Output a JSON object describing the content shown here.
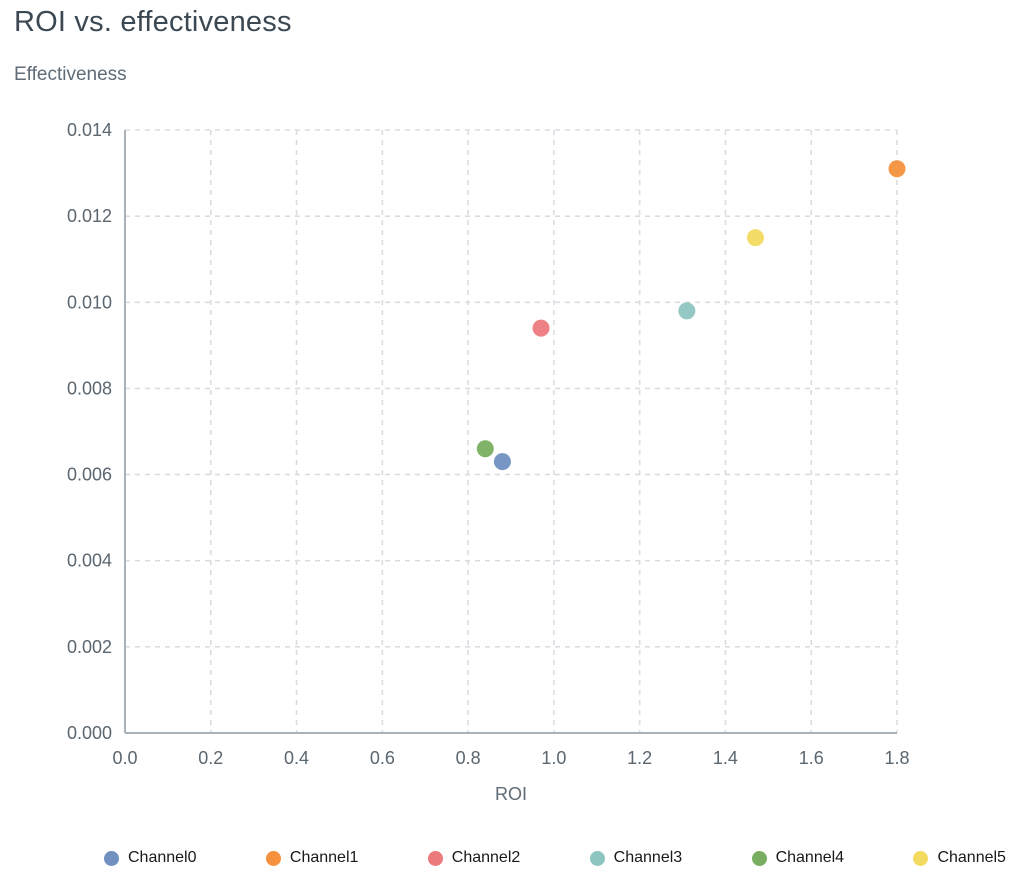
{
  "chart_data": {
    "type": "scatter",
    "title": "ROI vs. effectiveness",
    "xlabel": "ROI",
    "ylabel": "Effectiveness",
    "xlim": [
      0.0,
      1.8
    ],
    "ylim": [
      0.0,
      0.014
    ],
    "grid": true,
    "legend_position": "bottom",
    "x_ticks": [
      0.0,
      0.2,
      0.4,
      0.6,
      0.8,
      1.0,
      1.2,
      1.4,
      1.6,
      1.8
    ],
    "x_tick_labels": [
      "0.0",
      "0.2",
      "0.4",
      "0.6",
      "0.8",
      "1.0",
      "1.2",
      "1.4",
      "1.6",
      "1.8"
    ],
    "y_ticks": [
      0.0,
      0.002,
      0.004,
      0.006,
      0.008,
      0.01,
      0.012,
      0.014
    ],
    "y_tick_labels": [
      "0.000",
      "0.002",
      "0.004",
      "0.006",
      "0.008",
      "0.010",
      "0.012",
      "0.014"
    ],
    "series": [
      {
        "name": "Channel0",
        "color": "#7090c0",
        "points": [
          {
            "x": 0.88,
            "y": 0.0063
          }
        ]
      },
      {
        "name": "Channel1",
        "color": "#f6913e",
        "points": [
          {
            "x": 1.8,
            "y": 0.0131
          }
        ]
      },
      {
        "name": "Channel2",
        "color": "#ec7a7d",
        "points": [
          {
            "x": 0.97,
            "y": 0.0094
          }
        ]
      },
      {
        "name": "Channel3",
        "color": "#8fc5c1",
        "points": [
          {
            "x": 1.31,
            "y": 0.0098
          }
        ]
      },
      {
        "name": "Channel4",
        "color": "#79ae60",
        "points": [
          {
            "x": 0.84,
            "y": 0.0066
          }
        ]
      },
      {
        "name": "Channel5",
        "color": "#f3da61",
        "points": [
          {
            "x": 1.47,
            "y": 0.0115
          }
        ]
      }
    ]
  }
}
